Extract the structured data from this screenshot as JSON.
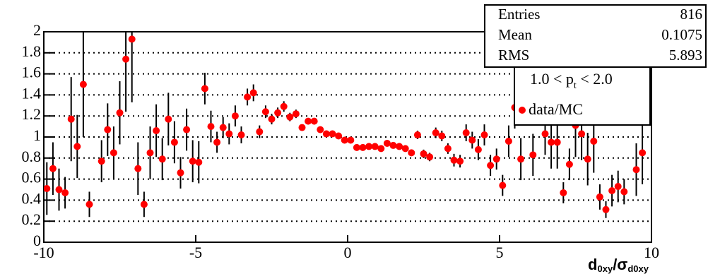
{
  "chart_data": {
    "type": "scatter",
    "xlabel": [
      "d",
      "0xy",
      "/σ",
      "d0xy"
    ],
    "legend_title": [
      "1.0 < p",
      "t",
      " < 2.0"
    ],
    "stats": [
      {
        "label": "Entries",
        "value": 816
      },
      {
        "label": "Mean",
        "value": 0.1075
      },
      {
        "label": "RMS",
        "value": 5.893
      }
    ],
    "xlim": [
      -10,
      10
    ],
    "xticks": [
      -10,
      -5,
      0,
      5,
      10
    ],
    "ylim": [
      0,
      2
    ],
    "yticks": [
      0,
      0.2,
      0.4,
      0.6,
      0.8,
      1,
      1.2,
      1.4,
      1.6,
      1.8,
      2
    ],
    "grid": true,
    "series": [
      {
        "name": "data/MC",
        "color": "#ff0000",
        "x": [
          -9.9,
          -9.7,
          -9.5,
          -9.3,
          -9.1,
          -8.9,
          -8.7,
          -8.5,
          -8.1,
          -7.9,
          -7.7,
          -7.5,
          -7.3,
          -7.1,
          -6.9,
          -6.7,
          -6.5,
          -6.3,
          -6.1,
          -5.9,
          -5.7,
          -5.5,
          -5.3,
          -5.1,
          -4.9,
          -4.7,
          -4.5,
          -4.3,
          -4.1,
          -3.9,
          -3.7,
          -3.5,
          -3.3,
          -3.1,
          -2.9,
          -2.7,
          -2.5,
          -2.3,
          -2.1,
          -1.9,
          -1.7,
          -1.5,
          -1.3,
          -1.1,
          -0.9,
          -0.7,
          -0.5,
          -0.3,
          -0.1,
          0.1,
          0.3,
          0.5,
          0.7,
          0.9,
          1.1,
          1.3,
          1.5,
          1.7,
          1.9,
          2.1,
          2.3,
          2.5,
          2.7,
          2.9,
          3.1,
          3.3,
          3.5,
          3.7,
          3.9,
          4.1,
          4.3,
          4.5,
          4.7,
          4.9,
          5.1,
          5.3,
          5.5,
          5.7,
          6.1,
          6.5,
          6.7,
          6.9,
          7.1,
          7.3,
          7.5,
          7.7,
          7.9,
          8.1,
          8.3,
          8.5,
          8.7,
          8.9,
          9.1,
          9.5,
          9.7
        ],
        "values": [
          0.51,
          0.7,
          0.5,
          0.47,
          1.17,
          0.91,
          1.5,
          0.36,
          0.77,
          1.07,
          0.85,
          1.23,
          1.74,
          1.93,
          0.7,
          0.36,
          0.85,
          1.06,
          0.79,
          1.17,
          0.95,
          0.66,
          1.07,
          0.77,
          0.76,
          1.46,
          1.1,
          0.95,
          1.09,
          1.03,
          1.2,
          1.02,
          1.38,
          1.42,
          1.05,
          1.24,
          1.17,
          1.23,
          1.29,
          1.19,
          1.22,
          1.09,
          1.15,
          1.15,
          1.07,
          1.03,
          1.03,
          1.01,
          0.97,
          0.97,
          0.9,
          0.9,
          0.91,
          0.91,
          0.89,
          0.94,
          0.92,
          0.91,
          0.89,
          0.85,
          1.02,
          0.84,
          0.81,
          1.04,
          1.01,
          0.89,
          0.78,
          0.77,
          1.04,
          0.97,
          0.88,
          1.02,
          0.73,
          0.79,
          0.54,
          0.96,
          1.28,
          0.79,
          0.83,
          1.03,
          0.95,
          0.95,
          0.47,
          0.74,
          1.11,
          1.03,
          0.79,
          0.96,
          0.43,
          0.31,
          0.49,
          0.53,
          0.48,
          0.69,
          0.85
        ],
        "errors": [
          0.25,
          0.25,
          0.2,
          0.15,
          0.4,
          0.3,
          0.5,
          0.12,
          0.2,
          0.25,
          0.25,
          0.3,
          0.5,
          0.6,
          0.25,
          0.12,
          0.25,
          0.25,
          0.2,
          0.25,
          0.2,
          0.15,
          0.2,
          0.2,
          0.2,
          0.15,
          0.15,
          0.1,
          0.1,
          0.1,
          0.1,
          0.08,
          0.08,
          0.08,
          0.06,
          0.06,
          0.05,
          0.05,
          0.05,
          0.04,
          0.04,
          0.03,
          0.03,
          0.03,
          0.02,
          0.02,
          0.02,
          0.02,
          0.02,
          0.02,
          0.02,
          0.02,
          0.02,
          0.02,
          0.02,
          0.02,
          0.02,
          0.03,
          0.03,
          0.03,
          0.04,
          0.04,
          0.04,
          0.05,
          0.05,
          0.05,
          0.06,
          0.06,
          0.08,
          0.08,
          0.1,
          0.1,
          0.1,
          0.1,
          0.1,
          0.15,
          0.2,
          0.2,
          0.2,
          0.2,
          0.25,
          0.25,
          0.1,
          0.15,
          0.3,
          0.25,
          0.25,
          0.3,
          0.12,
          0.08,
          0.15,
          0.15,
          0.12,
          0.25,
          0.3
        ]
      }
    ]
  }
}
